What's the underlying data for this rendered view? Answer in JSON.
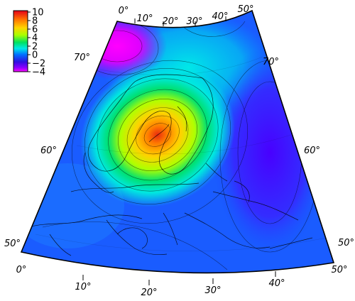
{
  "colorbar": {
    "ticks": [
      "10",
      "8",
      "6",
      "4",
      "2",
      "0",
      "−2",
      "−4"
    ],
    "colors": [
      "#e4001a",
      "#ff7000",
      "#ffd400",
      "#a8ff00",
      "#00e060",
      "#00e8e8",
      "#0070ff",
      "#3010e0",
      "#8800ff",
      "#ff00ff"
    ]
  },
  "longitude_labels": {
    "top": [
      "0°",
      "10°",
      "20°",
      "30°",
      "40°",
      "50°"
    ],
    "bottom": [
      "0°",
      "10°",
      "20°",
      "30°",
      "40°",
      "50°"
    ]
  },
  "latitude_labels": {
    "left": [
      "70°",
      "60°",
      "50°"
    ],
    "right": [
      "70°",
      "60°",
      "50°"
    ]
  },
  "field": {
    "max_value": 10,
    "min_value": -4,
    "max_location_label": "~62°N 22°E"
  }
}
